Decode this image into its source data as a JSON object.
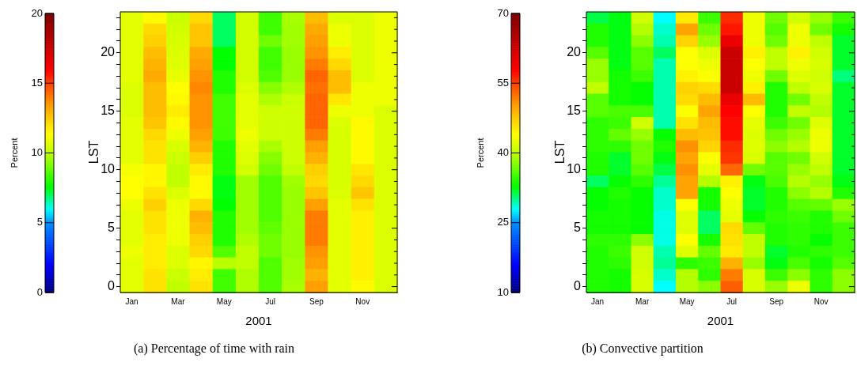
{
  "chart_data": [
    {
      "type": "heatmap",
      "xlabel": "2001",
      "ylabel": "LST",
      "clabel": "Percent",
      "clim": [
        0,
        20
      ],
      "cticks": [
        0,
        5,
        10,
        15,
        20
      ],
      "annotations": [
        "(a)  Percentage of time with rain"
      ],
      "categories": [
        "Jan",
        null,
        "Mar",
        null,
        "May",
        null,
        "Jul",
        null,
        "Sep",
        null,
        "Nov",
        null
      ],
      "y_categories": [
        null,
        null,
        null,
        "20",
        null,
        null,
        null,
        null,
        "15",
        null,
        null,
        null,
        null,
        "10",
        null,
        null,
        null,
        null,
        "5",
        null,
        null,
        null,
        null,
        "0"
      ],
      "cells": [
        [
          10.8,
          11.5,
          10.2,
          12.2,
          7.0,
          10.4,
          8.4,
          9.7,
          12.8,
          10.6,
          10.6,
          11.0
        ],
        [
          10.8,
          12.2,
          10.4,
          12.6,
          7.0,
          10.4,
          8.4,
          9.6,
          13.2,
          11.0,
          10.6,
          11.0
        ],
        [
          10.8,
          12.4,
          10.5,
          12.6,
          7.0,
          10.4,
          9.0,
          9.6,
          13.4,
          11.0,
          10.6,
          11.0
        ],
        [
          10.8,
          12.8,
          10.6,
          13.2,
          7.6,
          10.4,
          8.4,
          9.5,
          13.6,
          11.8,
          10.6,
          11.0
        ],
        [
          10.8,
          13.0,
          10.7,
          13.4,
          7.6,
          10.4,
          8.4,
          9.5,
          14.0,
          12.2,
          10.6,
          11.0
        ],
        [
          10.8,
          13.2,
          10.9,
          13.6,
          8.0,
          10.4,
          8.6,
          9.5,
          14.4,
          12.8,
          10.6,
          11.0
        ],
        [
          10.6,
          12.8,
          11.4,
          13.8,
          8.0,
          10.6,
          9.3,
          9.8,
          14.2,
          12.8,
          11.0,
          11.0
        ],
        [
          10.6,
          12.8,
          11.5,
          13.6,
          8.4,
          10.8,
          9.8,
          10.2,
          14.4,
          11.9,
          11.0,
          11.0
        ],
        [
          10.6,
          12.8,
          11.8,
          13.6,
          8.4,
          10.8,
          10.3,
          10.3,
          14.4,
          11.0,
          11.0,
          10.6
        ],
        [
          10.8,
          12.6,
          11.5,
          13.6,
          8.4,
          10.8,
          10.3,
          10.3,
          14.4,
          10.6,
          11.5,
          10.6
        ],
        [
          10.8,
          12.2,
          11.0,
          13.4,
          8.4,
          11.0,
          10.3,
          10.3,
          14.0,
          10.5,
          11.5,
          10.6
        ],
        [
          10.8,
          12.0,
          10.5,
          13.0,
          8.0,
          10.8,
          9.7,
          10.3,
          13.4,
          10.5,
          11.5,
          10.6
        ],
        [
          10.8,
          12.0,
          10.2,
          12.4,
          8.0,
          10.6,
          9.3,
          10.2,
          13.0,
          10.5,
          11.5,
          10.6
        ],
        [
          11.2,
          11.6,
          10.0,
          11.8,
          8.0,
          10.4,
          9.0,
          10.0,
          12.4,
          10.5,
          11.9,
          10.6
        ],
        [
          11.4,
          11.6,
          10.0,
          11.5,
          7.5,
          9.6,
          8.6,
          9.6,
          12.2,
          10.5,
          12.2,
          10.6
        ],
        [
          11.4,
          12.0,
          10.6,
          11.5,
          7.5,
          9.6,
          8.6,
          9.5,
          12.6,
          10.6,
          12.6,
          10.6
        ],
        [
          11.0,
          12.4,
          11.0,
          12.2,
          7.6,
          9.6,
          8.6,
          9.5,
          13.4,
          10.8,
          12.0,
          10.6
        ],
        [
          10.8,
          12.0,
          11.0,
          13.0,
          8.0,
          9.6,
          8.6,
          9.5,
          14.0,
          10.8,
          11.7,
          10.6
        ],
        [
          10.8,
          12.0,
          11.0,
          12.8,
          8.0,
          9.6,
          8.8,
          9.5,
          14.0,
          10.8,
          11.7,
          10.6
        ],
        [
          10.8,
          11.8,
          11.0,
          12.4,
          8.0,
          9.8,
          9.0,
          9.5,
          14.0,
          10.8,
          11.7,
          10.6
        ],
        [
          11.0,
          11.8,
          10.6,
          12.2,
          8.6,
          10.0,
          9.0,
          9.5,
          13.6,
          10.8,
          11.7,
          10.6
        ],
        [
          10.8,
          11.8,
          10.6,
          11.6,
          9.9,
          10.0,
          8.6,
          9.6,
          13.4,
          10.8,
          11.7,
          10.6
        ],
        [
          10.8,
          12.0,
          10.2,
          11.8,
          8.4,
          9.8,
          8.6,
          9.6,
          13.0,
          10.8,
          11.7,
          10.6
        ],
        [
          10.8,
          12.0,
          10.0,
          12.0,
          8.4,
          9.8,
          8.6,
          9.7,
          13.4,
          10.8,
          11.5,
          10.6
        ]
      ]
    },
    {
      "type": "heatmap",
      "xlabel": "2001",
      "ylabel": "LST",
      "clabel": "Percent",
      "clim": [
        10,
        70
      ],
      "cticks": [
        10,
        25,
        40,
        55,
        70
      ],
      "annotations": [
        "(b)  Convective partition"
      ],
      "categories": [
        "Jan",
        null,
        "Mar",
        null,
        "May",
        null,
        "Jul",
        null,
        "Sep",
        null,
        "Nov",
        null
      ],
      "y_categories": [
        null,
        null,
        null,
        "20",
        null,
        null,
        null,
        null,
        "15",
        null,
        null,
        null,
        null,
        "10",
        null,
        null,
        null,
        null,
        "5",
        null,
        null,
        null,
        null,
        "0"
      ],
      "cells": [
        [
          31.5,
          32.5,
          41,
          28,
          45.5,
          35,
          56,
          43,
          37,
          41,
          38.5,
          35
        ],
        [
          34,
          32.5,
          39.5,
          29,
          50,
          37,
          57,
          43,
          36,
          43,
          37,
          33.5
        ],
        [
          34,
          32.5,
          38,
          29.5,
          47,
          38.5,
          60,
          43,
          37,
          43,
          40,
          32
        ],
        [
          36,
          32.5,
          36,
          31,
          44,
          42,
          63,
          45,
          40,
          45,
          41,
          32
        ],
        [
          38.5,
          32.5,
          36,
          29.5,
          44,
          43,
          63,
          44,
          40,
          43,
          41.5,
          32
        ],
        [
          38.5,
          33.5,
          35,
          29.5,
          45,
          44,
          63,
          43,
          37,
          42,
          41,
          30.5
        ],
        [
          40,
          33.5,
          33,
          29.5,
          47,
          46.5,
          63,
          45,
          34,
          40,
          41.5,
          32
        ],
        [
          36,
          33.5,
          33,
          29.5,
          46.5,
          48.5,
          60,
          48.5,
          34,
          37,
          40,
          32
        ],
        [
          36,
          35.5,
          35.5,
          29.5,
          44,
          50,
          58,
          44,
          34,
          40,
          39.5,
          32
        ],
        [
          34.5,
          35,
          41,
          29.5,
          46,
          48.5,
          57.5,
          42.5,
          35,
          37,
          42,
          32
        ],
        [
          34.5,
          36.5,
          38.5,
          33,
          48.5,
          48,
          57.5,
          42,
          37,
          38.5,
          43,
          32
        ],
        [
          34.5,
          34.5,
          37,
          34,
          51,
          47,
          56,
          42,
          38,
          39.5,
          43,
          32
        ],
        [
          34,
          32,
          37,
          32.5,
          50,
          44,
          55.5,
          41.5,
          36,
          37,
          41,
          32
        ],
        [
          34,
          32,
          36,
          31.5,
          51,
          42.5,
          53,
          37,
          36,
          38.5,
          40,
          32
        ],
        [
          31,
          33,
          34.5,
          30,
          50,
          39.5,
          45,
          32.5,
          35.5,
          39.5,
          38.5,
          32.5
        ],
        [
          33,
          34,
          33,
          29,
          50,
          33.5,
          44,
          32,
          34,
          38,
          39.5,
          34
        ],
        [
          33,
          33.5,
          33,
          29,
          44,
          33.5,
          43,
          32,
          34,
          36,
          36.5,
          38.5
        ],
        [
          33.5,
          33.5,
          33,
          28.5,
          42,
          31,
          42.5,
          33,
          34.5,
          35,
          34,
          37
        ],
        [
          33.5,
          33.5,
          33,
          28.5,
          42,
          31,
          46.5,
          36.5,
          34,
          34.5,
          34,
          35
        ],
        [
          34.5,
          34.5,
          38,
          28.5,
          44,
          33.5,
          46,
          40,
          34,
          34.5,
          33,
          35
        ],
        [
          34,
          35,
          41,
          29.5,
          42,
          36.5,
          45.5,
          40,
          32,
          34,
          34.5,
          35
        ],
        [
          34,
          34.5,
          41,
          30,
          34.5,
          35,
          49,
          38.5,
          32.5,
          35.5,
          33.5,
          36
        ],
        [
          34,
          33.5,
          41.5,
          29,
          39.5,
          34.5,
          52,
          41.5,
          35,
          38,
          34.5,
          38
        ],
        [
          34,
          33.5,
          41.5,
          28,
          39.5,
          38,
          53.5,
          41.5,
          38.5,
          43,
          34.5,
          38
        ]
      ]
    }
  ]
}
